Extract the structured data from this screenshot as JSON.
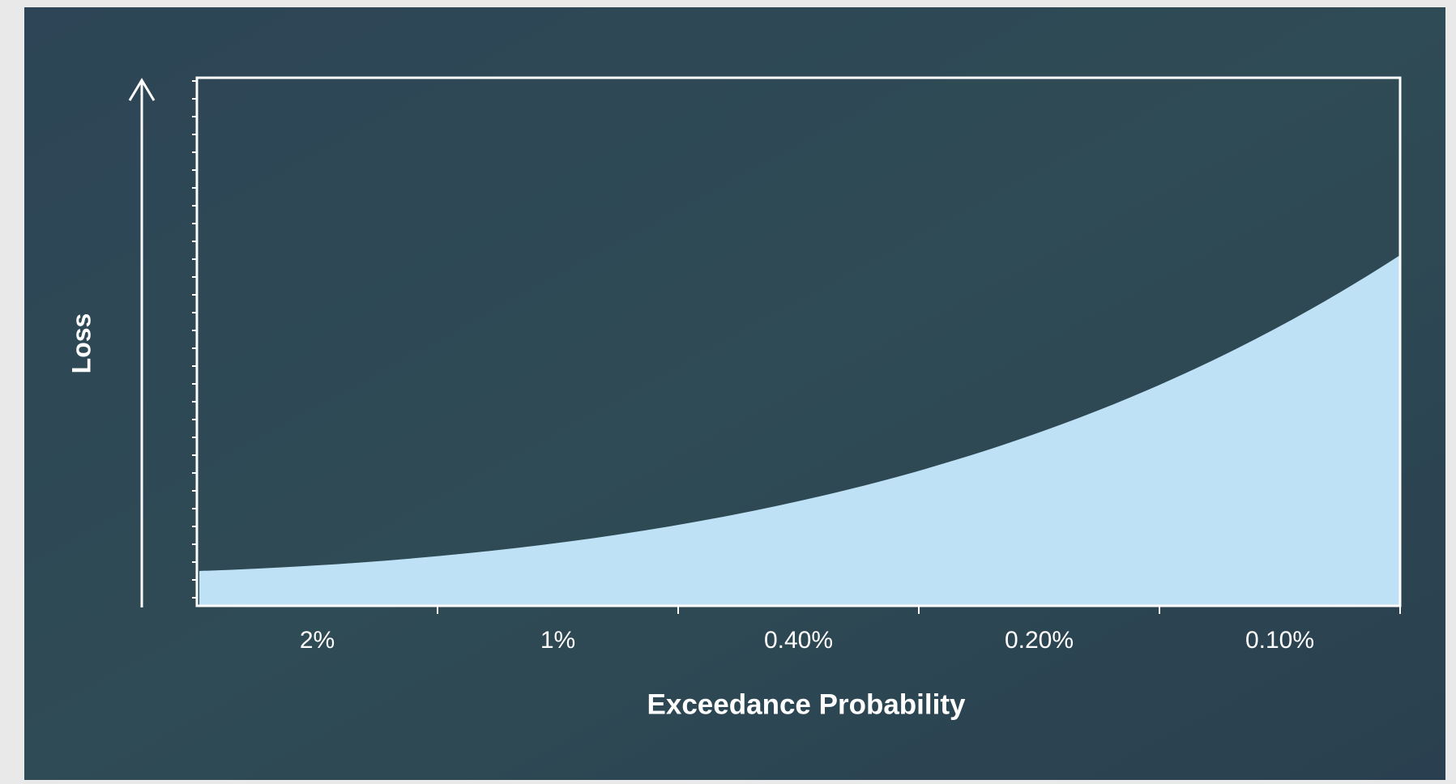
{
  "chart_data": {
    "type": "area",
    "categories": [
      "2%",
      "1%",
      "0.40%",
      "0.20%",
      "0.10%"
    ],
    "x_label": "Exceedance Probability",
    "y_label": "Loss",
    "color": "#bfe1f5"
  }
}
